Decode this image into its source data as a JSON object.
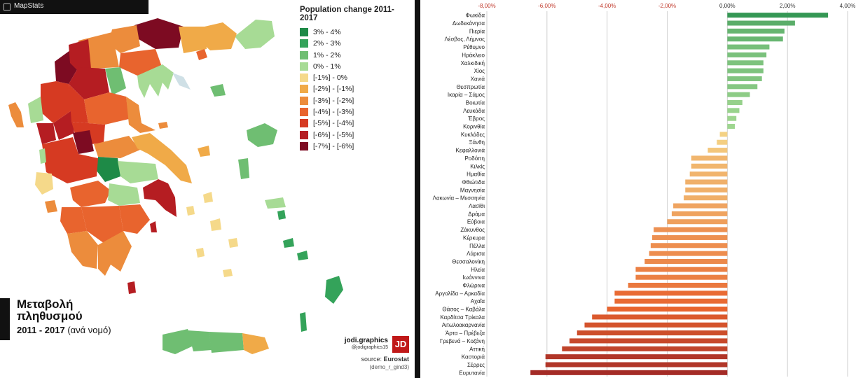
{
  "app": {
    "name": "MapStats"
  },
  "legend": {
    "title": "Population change 2011-2017",
    "items": [
      {
        "label": "3% - 4%",
        "color": "#1e8a47"
      },
      {
        "label": "2% - 3%",
        "color": "#34a35a"
      },
      {
        "label": "1% - 2%",
        "color": "#6fbe72"
      },
      {
        "label": "0% - 1%",
        "color": "#a7db95"
      },
      {
        "label": "[-1%] - 0%",
        "color": "#f5d98a"
      },
      {
        "label": "[-2%] - [-1%]",
        "color": "#f0aa48"
      },
      {
        "label": "[-3%] - [-2%]",
        "color": "#ec8c3c"
      },
      {
        "label": "[-4%] - [-3%]",
        "color": "#e8642e"
      },
      {
        "label": "[-5%] - [-4%]",
        "color": "#d63a22"
      },
      {
        "label": "[-6%] - [-5%]",
        "color": "#b51d22"
      },
      {
        "label": "[-7%] - [-6%]",
        "color": "#7d0b22"
      }
    ]
  },
  "map_title": {
    "line1": "Μεταβολή",
    "line2": "πληθυσμού",
    "years": "2011 - 2017",
    "suffix": "(ανά νομό)"
  },
  "credit": {
    "brand": "jodi.graphics",
    "handle": "@jodigraphics15",
    "logo_text": "JD",
    "source_label": "source:",
    "source_name": "Eurostat",
    "dataset": "(demo_r_gind3)"
  },
  "chart_data": {
    "type": "bar",
    "orientation": "horizontal",
    "x_ticks": [
      "-8,00%",
      "-6,00%",
      "-4,00%",
      "-2,00%",
      "0,00%",
      "2,00%",
      "4,00%"
    ],
    "xlim": [
      -8,
      4
    ],
    "unit": "%",
    "grid": true,
    "categories": [
      "Φωκίδα",
      "Δωδεκάνησα",
      "Πιερία",
      "Λέσβος, Λήμνος",
      "Ρέθυμνο",
      "Ηράκλειο",
      "Χαλκιδική",
      "Χίος",
      "Χανιά",
      "Θεσπρωτία",
      "Ικαρία – Σάμος",
      "Βοιωτία",
      "Λευκάδα",
      "Έβρος",
      "Κορινθία",
      "Κυκλάδες",
      "Ξάνθη",
      "Κεφαλλονιά",
      "Ροδόπη",
      "Κιλκίς",
      "Ημαθία",
      "Φθιώτιδα",
      "Μαγνησία",
      "Λακωνία – Μεσσηνία",
      "Λασίθι",
      "Δράμα",
      "Εύβοια",
      "Ζάκυνθος",
      "Κέρκυρα",
      "Πέλλα",
      "Λάρισα",
      "Θεσσαλονίκη",
      "Ηλεία",
      "Ιωάννινα",
      "Φλώρινα",
      "Αργολίδα – Αρκαδία",
      "Αχαΐα",
      "Θάσος – Καβάλα",
      "Καρδίτσα Τρίκαλα",
      "Αιτωλοακαρνανία",
      "Άρτα – Πρέβεζα",
      "Γρεβενά – Κοζάνη",
      "Αττική",
      "Καστοριά",
      "Σέρρες",
      "Ευρυτανία"
    ],
    "values": [
      3.35,
      2.25,
      1.9,
      1.85,
      1.4,
      1.3,
      1.2,
      1.2,
      1.15,
      1.0,
      0.75,
      0.5,
      0.4,
      0.3,
      0.25,
      -0.25,
      -0.35,
      -0.65,
      -1.2,
      -1.2,
      -1.25,
      -1.4,
      -1.4,
      -1.45,
      -1.8,
      -1.85,
      -2.0,
      -2.45,
      -2.5,
      -2.55,
      -2.6,
      -2.75,
      -3.05,
      -3.05,
      -3.3,
      -3.75,
      -3.75,
      -4.0,
      -4.5,
      -4.75,
      -5.0,
      -5.25,
      -5.5,
      -6.05,
      -6.05,
      -6.55
    ],
    "colors": {
      "pos_high": "#1e8a47",
      "pos_low": "#a7db95",
      "neg_low": "#f5d98a",
      "neg_mid": "#e8642e",
      "neg_high": "#7d0b22"
    }
  }
}
